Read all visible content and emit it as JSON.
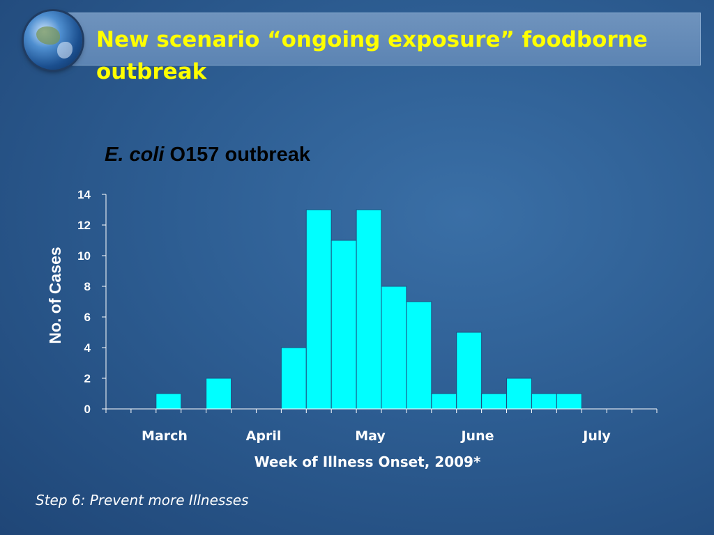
{
  "slide": {
    "title": "New scenario “ongoing exposure” foodborne outbreak",
    "footer": "Step 6: Prevent more Illnesses"
  },
  "colors": {
    "title_text": "#ffff00",
    "bar_fill": "#00ffff",
    "axis_text": "#ffffff",
    "chart_title_text": "#000000"
  },
  "chart_data": {
    "type": "bar",
    "title_italic": "E. coli",
    "title_rest": "O157 outbreak",
    "xlabel": "Week of Illness Onset, 2009*",
    "ylabel": "No. of Cases",
    "ylim": [
      0,
      14
    ],
    "yticks": [
      0,
      2,
      4,
      6,
      8,
      10,
      12,
      14
    ],
    "month_labels": [
      "March",
      "April",
      "May",
      "June",
      "July"
    ],
    "values": [
      0,
      0,
      1,
      0,
      2,
      0,
      0,
      4,
      13,
      11,
      13,
      8,
      7,
      1,
      5,
      1,
      2,
      1,
      1,
      0,
      0,
      0
    ],
    "grid": false,
    "legend": "none"
  }
}
